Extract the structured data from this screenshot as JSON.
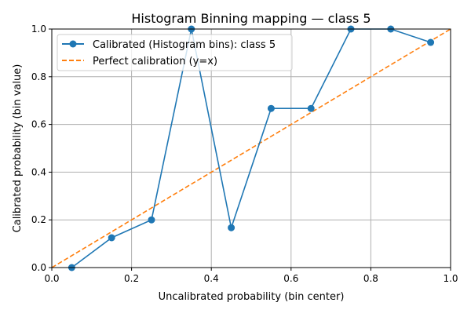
{
  "chart_data": {
    "type": "line",
    "title": "Histogram Binning mapping — class 5",
    "xlabel": "Uncalibrated probability (bin center)",
    "ylabel": "Calibrated probability (bin value)",
    "xlim": [
      0,
      1
    ],
    "ylim": [
      0,
      1
    ],
    "grid": true,
    "legend_position": "top-left",
    "xticks": [
      "0.0",
      "0.2",
      "0.4",
      "0.6",
      "0.8",
      "1.0"
    ],
    "yticks": [
      "0.0",
      "0.2",
      "0.4",
      "0.6",
      "0.8",
      "1.0"
    ],
    "series": [
      {
        "name": "Calibrated (Histogram bins): class 5",
        "color": "#1f77b4",
        "style": "solid-marker",
        "x": [
          0.05,
          0.15,
          0.25,
          0.35,
          0.45,
          0.55,
          0.65,
          0.75,
          0.85,
          0.95
        ],
        "y": [
          0.0,
          0.125,
          0.2,
          1.0,
          0.167,
          0.667,
          0.667,
          1.0,
          1.0,
          0.944
        ]
      },
      {
        "name": "Perfect calibration (y=x)",
        "color": "#ff7f0e",
        "style": "dashed",
        "x": [
          0,
          1
        ],
        "y": [
          0,
          1
        ]
      }
    ]
  }
}
